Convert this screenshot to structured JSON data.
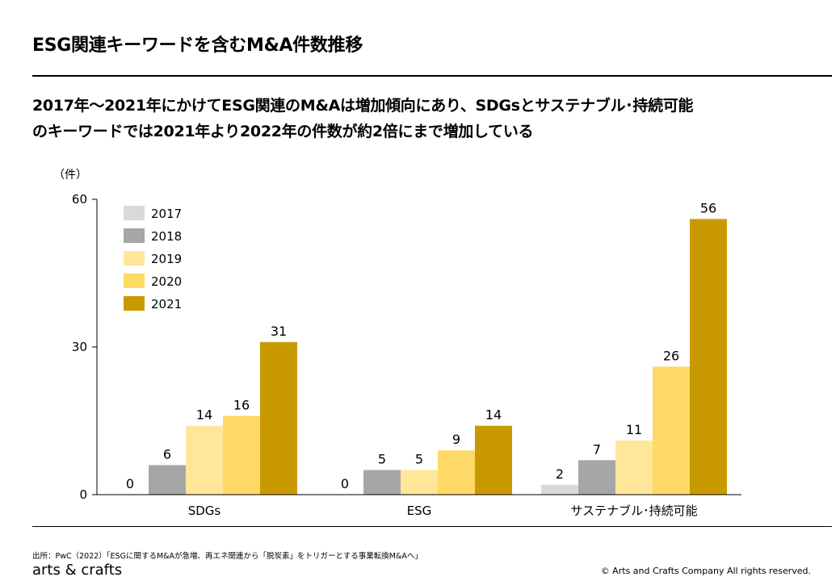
{
  "header": {
    "title": "ESG関連キーワードを含むM&A件数推移",
    "lead_line1": "2017年～2021年にかけてESG関連のM&Aは増加傾向にあり、SDGsとサステナブル･持続可能",
    "lead_line2": "のキーワードでは2021年より2022年の件数が約2倍にまで増加している"
  },
  "chart_data": {
    "type": "bar",
    "unit_label": "（件）",
    "categories": [
      "SDGs",
      "ESG",
      "サステナブル･持続可能"
    ],
    "ylim": [
      0,
      60
    ],
    "yticks": [
      0,
      30,
      60
    ],
    "grid": false,
    "legend_position": "top-left",
    "series": [
      {
        "name": "2017",
        "color": "#d9d9d9",
        "values": [
          0,
          0,
          2
        ]
      },
      {
        "name": "2018",
        "color": "#a6a6a6",
        "values": [
          6,
          5,
          7
        ]
      },
      {
        "name": "2019",
        "color": "#ffe699",
        "values": [
          14,
          5,
          11
        ]
      },
      {
        "name": "2020",
        "color": "#ffd966",
        "values": [
          16,
          9,
          26
        ]
      },
      {
        "name": "2021",
        "color": "#c99a00",
        "values": [
          31,
          14,
          56
        ]
      }
    ]
  },
  "footer": {
    "source": "出所：PwC（2022）「ESGに関するM&Aが急増、再エネ関連から「脱炭素」をトリガーとする事業転換M&Aへ」",
    "brand": "arts & crafts",
    "copyright": "© Arts and Crafts Company All rights reserved."
  }
}
